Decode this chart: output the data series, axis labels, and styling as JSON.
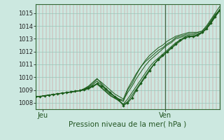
{
  "xlabel": "Pression niveau de la mer( hPa )",
  "ylim": [
    1007.5,
    1015.7
  ],
  "xlim": [
    0,
    54
  ],
  "yticks": [
    1008,
    1009,
    1010,
    1011,
    1012,
    1013,
    1014,
    1015
  ],
  "jeu_x": 2,
  "ven_x": 38,
  "vline_x": 38,
  "bg_color": "#cce8e0",
  "line_color": "#1a5c1a",
  "main_line_y": [
    1008.5,
    1008.5,
    1008.55,
    1008.6,
    1008.65,
    1008.7,
    1008.75,
    1008.8,
    1008.85,
    1008.9,
    1008.95,
    1009.05,
    1009.15,
    1009.3,
    1009.5,
    1009.3,
    1009.1,
    1008.8,
    1008.5,
    1008.2,
    1007.8,
    1008.0,
    1008.4,
    1009.0,
    1009.5,
    1010.0,
    1010.5,
    1011.0,
    1011.4,
    1011.7,
    1012.0,
    1012.3,
    1012.6,
    1012.9,
    1013.1,
    1013.2,
    1013.2,
    1013.3,
    1013.5,
    1013.8,
    1014.2,
    1014.7,
    1015.2
  ],
  "ensemble_lines": [
    [
      1008.5,
      1008.5,
      1008.55,
      1008.6,
      1008.65,
      1008.7,
      1008.75,
      1008.8,
      1008.85,
      1008.9,
      1008.95,
      1009.1,
      1009.3,
      1009.6,
      1009.9,
      1009.5,
      1009.1,
      1008.8,
      1008.5,
      1008.3,
      1008.1,
      1009.0,
      1009.5,
      1010.2,
      1010.8,
      1011.3,
      1011.7,
      1012.0,
      1012.3,
      1012.5,
      1012.8,
      1013.0,
      1013.2,
      1013.3,
      1013.4,
      1013.5,
      1013.5,
      1013.5,
      1013.6,
      1014.0,
      1014.5,
      1015.0,
      1015.5
    ],
    [
      1008.5,
      1008.5,
      1008.55,
      1008.6,
      1008.65,
      1008.7,
      1008.75,
      1008.8,
      1008.85,
      1008.9,
      1008.95,
      1009.05,
      1009.2,
      1009.4,
      1009.7,
      1009.4,
      1009.0,
      1008.7,
      1008.5,
      1008.3,
      1008.2,
      1008.8,
      1009.3,
      1009.9,
      1010.4,
      1010.9,
      1011.3,
      1011.6,
      1011.9,
      1012.2,
      1012.5,
      1012.7,
      1013.0,
      1013.1,
      1013.2,
      1013.3,
      1013.3,
      1013.4,
      1013.5,
      1013.8,
      1014.3,
      1014.8,
      1015.3
    ],
    [
      1008.5,
      1008.5,
      1008.55,
      1008.6,
      1008.65,
      1008.7,
      1008.75,
      1008.8,
      1008.85,
      1008.9,
      1008.95,
      1009.0,
      1009.1,
      1009.3,
      1009.5,
      1009.2,
      1008.9,
      1008.6,
      1008.4,
      1008.2,
      1007.9,
      1008.3,
      1008.8,
      1009.3,
      1009.8,
      1010.3,
      1010.8,
      1011.2,
      1011.5,
      1011.8,
      1012.1,
      1012.4,
      1012.7,
      1012.9,
      1013.1,
      1013.2,
      1013.2,
      1013.3,
      1013.5,
      1013.8,
      1014.3,
      1014.8,
      1015.2
    ],
    [
      1008.5,
      1008.5,
      1008.55,
      1008.6,
      1008.65,
      1008.7,
      1008.75,
      1008.8,
      1008.85,
      1008.9,
      1008.95,
      1009.0,
      1009.1,
      1009.25,
      1009.45,
      1009.15,
      1008.85,
      1008.55,
      1008.35,
      1008.15,
      1007.85,
      1008.1,
      1008.6,
      1009.1,
      1009.6,
      1010.1,
      1010.6,
      1011.0,
      1011.35,
      1011.65,
      1011.95,
      1012.25,
      1012.55,
      1012.8,
      1013.05,
      1013.15,
      1013.15,
      1013.25,
      1013.45,
      1013.75,
      1014.2,
      1014.75,
      1015.15
    ],
    [
      1008.5,
      1008.5,
      1008.55,
      1008.6,
      1008.65,
      1008.7,
      1008.75,
      1008.8,
      1008.85,
      1008.9,
      1008.95,
      1009.05,
      1009.25,
      1009.5,
      1009.85,
      1009.6,
      1009.3,
      1009.0,
      1008.7,
      1008.5,
      1008.3,
      1009.1,
      1009.7,
      1010.3,
      1010.8,
      1011.2,
      1011.5,
      1011.8,
      1012.1,
      1012.3,
      1012.6,
      1012.8,
      1013.1,
      1013.2,
      1013.3,
      1013.4,
      1013.4,
      1013.5,
      1013.6,
      1013.9,
      1014.4,
      1014.9,
      1015.2
    ]
  ]
}
